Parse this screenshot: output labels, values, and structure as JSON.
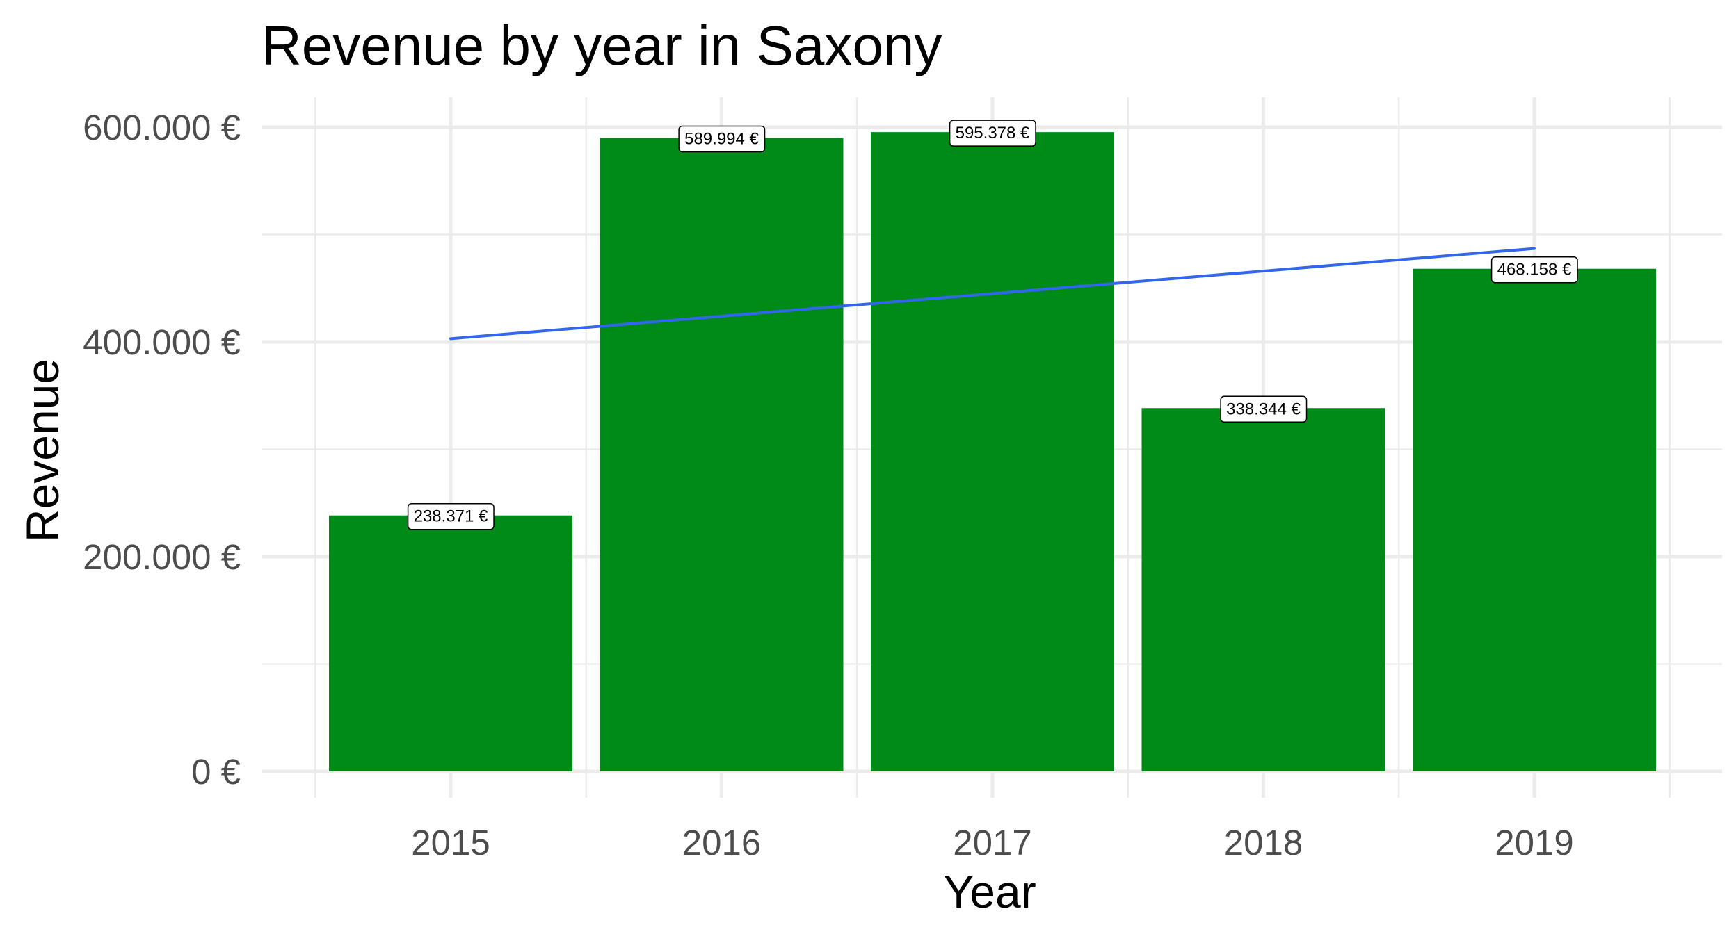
{
  "chart_data": {
    "type": "bar",
    "title": "Revenue by year in Saxony",
    "xlabel": "Year",
    "ylabel": "Revenue",
    "categories": [
      "2015",
      "2016",
      "2017",
      "2018",
      "2019"
    ],
    "values": [
      238371,
      589994,
      595378,
      338344,
      468158
    ],
    "data_labels": [
      "238.371 €",
      "589.994 €",
      "595.378 €",
      "338.344 €",
      "468.158 €"
    ],
    "ylim": [
      0,
      600000
    ],
    "y_ticks": [
      0,
      200000,
      400000,
      600000
    ],
    "y_tick_labels": [
      "0 €",
      "200.000 €",
      "400.000 €",
      "600.000 €"
    ],
    "trend_line": {
      "start": 403000,
      "end": 487000
    },
    "grid": true,
    "legend": "none",
    "colors": {
      "bar": "#008b19",
      "trend": "#3366ee",
      "grid": "#ebebeb"
    }
  }
}
